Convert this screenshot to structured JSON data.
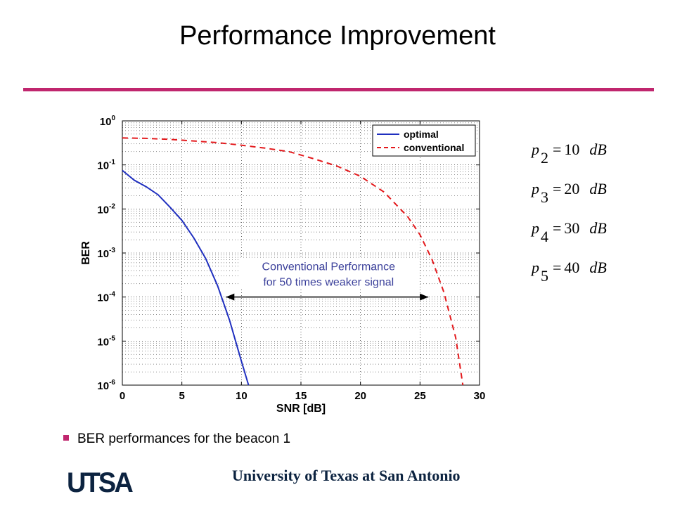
{
  "slide": {
    "title": "Performance Improvement",
    "bullet": "BER performances for the beacon 1",
    "footer": "University of Texas at San Antonio",
    "logo_text": "UTSA",
    "accent_color": "#c0266e",
    "footer_color": "#0c2340"
  },
  "equations": [
    {
      "var": "p",
      "sub": "2",
      "value": "10",
      "unit": "dB"
    },
    {
      "var": "p",
      "sub": "3",
      "value": "20",
      "unit": "dB"
    },
    {
      "var": "p",
      "sub": "4",
      "value": "30",
      "unit": "dB"
    },
    {
      "var": "p",
      "sub": "5",
      "value": "40",
      "unit": "dB"
    }
  ],
  "chart_data": {
    "type": "line",
    "title": "",
    "xlabel": "SNR [dB]",
    "ylabel": "BER",
    "xlim": [
      0,
      30
    ],
    "ylim": [
      1e-06,
      1
    ],
    "yscale": "log",
    "grid": true,
    "legend_position": "top-right",
    "x_ticks": [
      "0",
      "5",
      "10",
      "15",
      "20",
      "25",
      "30"
    ],
    "x_tick_values": [
      0,
      5,
      10,
      15,
      20,
      25,
      30
    ],
    "y_ticks": [
      {
        "base": "10",
        "exp": "0",
        "value": 1
      },
      {
        "base": "10",
        "exp": "-1",
        "value": 0.1
      },
      {
        "base": "10",
        "exp": "-2",
        "value": 0.01
      },
      {
        "base": "10",
        "exp": "-3",
        "value": 0.001
      },
      {
        "base": "10",
        "exp": "-4",
        "value": 0.0001
      },
      {
        "base": "10",
        "exp": "-5",
        "value": 1e-05
      },
      {
        "base": "10",
        "exp": "-6",
        "value": 1e-06
      }
    ],
    "series": [
      {
        "name": "optimal",
        "color": "#1f2fbf",
        "style": "solid",
        "x": [
          0,
          1,
          2,
          3,
          4,
          5,
          6,
          7,
          8,
          9,
          10,
          10.6
        ],
        "y": [
          0.075,
          0.045,
          0.032,
          0.021,
          0.011,
          0.0055,
          0.0022,
          0.00075,
          0.00018,
          3e-05,
          3.5e-06,
          1e-06
        ]
      },
      {
        "name": "conventional",
        "color": "#e3191c",
        "style": "dashed",
        "x": [
          0,
          2,
          4,
          6,
          8,
          10,
          12,
          14,
          16,
          18,
          20,
          22,
          24,
          25,
          26,
          27,
          28,
          28.6
        ],
        "y": [
          0.41,
          0.4,
          0.38,
          0.35,
          0.32,
          0.28,
          0.24,
          0.2,
          0.14,
          0.095,
          0.055,
          0.024,
          0.0065,
          0.0026,
          0.00072,
          0.00013,
          1.2e-05,
          1e-06
        ]
      }
    ],
    "annotation": {
      "text_line1": "Conventional Performance",
      "text_line2": "for 50 times weaker signal",
      "color": "#3a3f9a",
      "arrow_x": [
        8.7,
        25.7
      ],
      "arrow_y": 0.0001
    }
  }
}
